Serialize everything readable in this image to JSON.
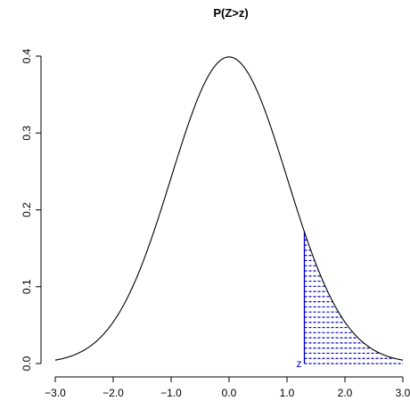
{
  "chart_data": {
    "type": "line",
    "title": "P(Z>z)",
    "xlabel": "",
    "ylabel": "",
    "xlim": [
      -3.0,
      3.0
    ],
    "ylim": [
      0.0,
      0.4
    ],
    "x_ticks": [
      -3.0,
      -2.0,
      -1.0,
      0.0,
      1.0,
      2.0,
      3.0
    ],
    "x_tick_labels": [
      "−3.0",
      "−2.0",
      "−1.0",
      "0.0",
      "1.0",
      "2.0",
      "3.0"
    ],
    "y_ticks": [
      0.0,
      0.1,
      0.2,
      0.3,
      0.4
    ],
    "y_tick_labels": [
      "0.0",
      "0.1",
      "0.2",
      "0.3",
      "0.4"
    ],
    "curve": {
      "function": "standard normal density",
      "x_range": [
        -3.0,
        3.0
      ],
      "color": "#000000"
    },
    "shaded_region": {
      "from_x": 1.3,
      "to_x": 3.0,
      "line_spacing_y": 0.0067,
      "color": "#0000cc",
      "style": "dashed horizontal lines"
    },
    "annotation": {
      "text": "z",
      "x": 1.3,
      "color": "#0000cc"
    },
    "grid": false
  }
}
